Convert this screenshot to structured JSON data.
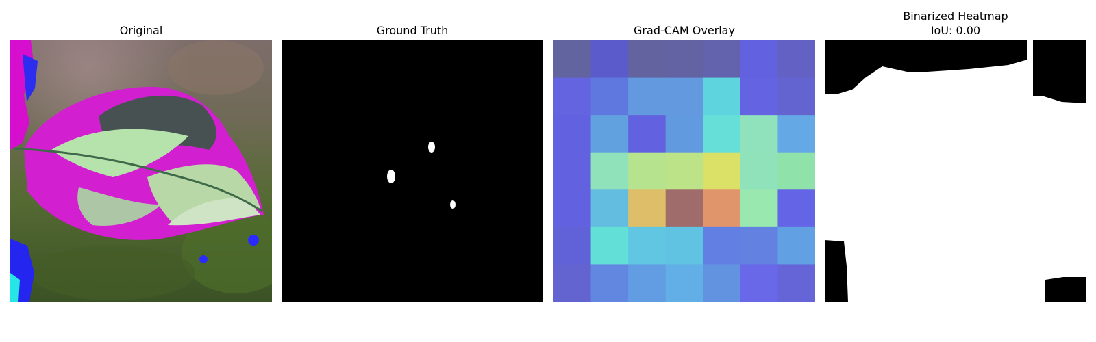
{
  "panels": [
    {
      "title": "Original"
    },
    {
      "title": "Ground Truth"
    },
    {
      "title": "Grad-CAM Overlay",
      "grid": [
        [
          "#61649f",
          "#5b5bcc",
          "#63639f",
          "#6363a3",
          "#6262ad",
          "#6262e0",
          "#6362c4"
        ],
        [
          "#6464e0",
          "#5f78df",
          "#6299df",
          "#6299df",
          "#5ed4df",
          "#6464e2",
          "#6464d1"
        ],
        [
          "#6262e0",
          "#62a1df",
          "#6262e0",
          "#629ae0",
          "#66dfd9",
          "#90e2bc",
          "#65a8e6"
        ],
        [
          "#6262e0",
          "#8fe2b9",
          "#b6e38e",
          "#bce387",
          "#dbe067",
          "#8fe2b9",
          "#8fe2a9"
        ],
        [
          "#6262e0",
          "#62bde0",
          "#dfbe6a",
          "#9f6b6b",
          "#e1956b",
          "#98e8b0",
          "#6464e6"
        ],
        [
          "#6262d8",
          "#62dfd6",
          "#61c6e2",
          "#61c3e2",
          "#6280e3",
          "#6281e1",
          "#62a0e4"
        ],
        [
          "#6464d1",
          "#6287e0",
          "#629ce2",
          "#62aee6",
          "#6293e0",
          "#6868e8",
          "#6565d8"
        ]
      ]
    },
    {
      "title": "Binarized Heatmap",
      "subtitle": "IoU: 0.00"
    }
  ]
}
